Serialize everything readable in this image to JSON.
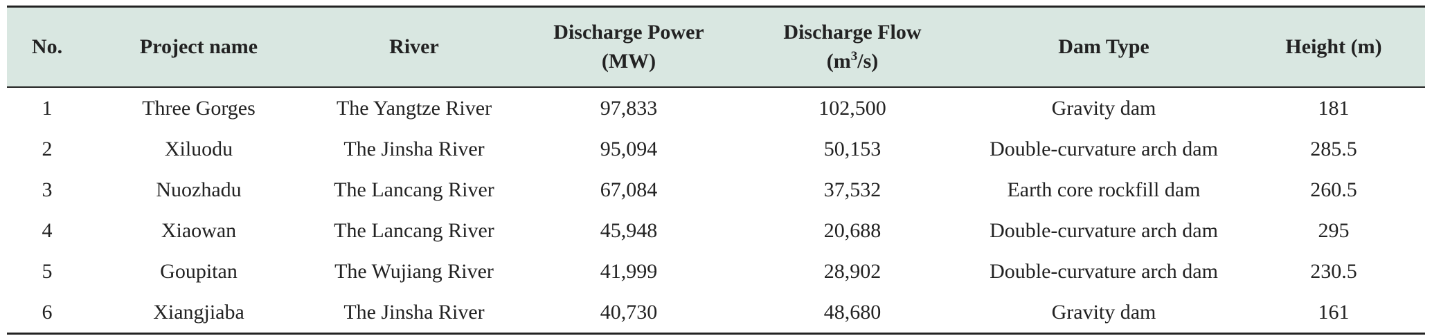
{
  "table": {
    "headers": {
      "no": "No.",
      "project_name": "Project name",
      "river": "River",
      "power_line1": "Discharge Power",
      "power_line2": "(MW)",
      "flow_line1": "Discharge Flow",
      "flow_unit_pre": "(m",
      "flow_unit_sup": "3",
      "flow_unit_post": "/s)",
      "dam_type": "Dam Type",
      "height": "Height (m)"
    },
    "rows": [
      {
        "no": "1",
        "project": "Three Gorges",
        "river": "The Yangtze River",
        "power": "97,833",
        "flow": "102,500",
        "dam_type": "Gravity dam",
        "height": "181"
      },
      {
        "no": "2",
        "project": "Xiluodu",
        "river": "The Jinsha River",
        "power": "95,094",
        "flow": "50,153",
        "dam_type": "Double-curvature arch dam",
        "height": "285.5"
      },
      {
        "no": "3",
        "project": "Nuozhadu",
        "river": "The Lancang River",
        "power": "67,084",
        "flow": "37,532",
        "dam_type": "Earth core rockfill dam",
        "height": "260.5"
      },
      {
        "no": "4",
        "project": "Xiaowan",
        "river": "The Lancang River",
        "power": "45,948",
        "flow": "20,688",
        "dam_type": "Double-curvature arch dam",
        "height": "295"
      },
      {
        "no": "5",
        "project": "Goupitan",
        "river": "The Wujiang River",
        "power": "41,999",
        "flow": "28,902",
        "dam_type": "Double-curvature arch dam",
        "height": "230.5"
      },
      {
        "no": "6",
        "project": "Xiangjiaba",
        "river": "The Jinsha River",
        "power": "40,730",
        "flow": "48,680",
        "dam_type": "Gravity dam",
        "height": "161"
      }
    ]
  }
}
